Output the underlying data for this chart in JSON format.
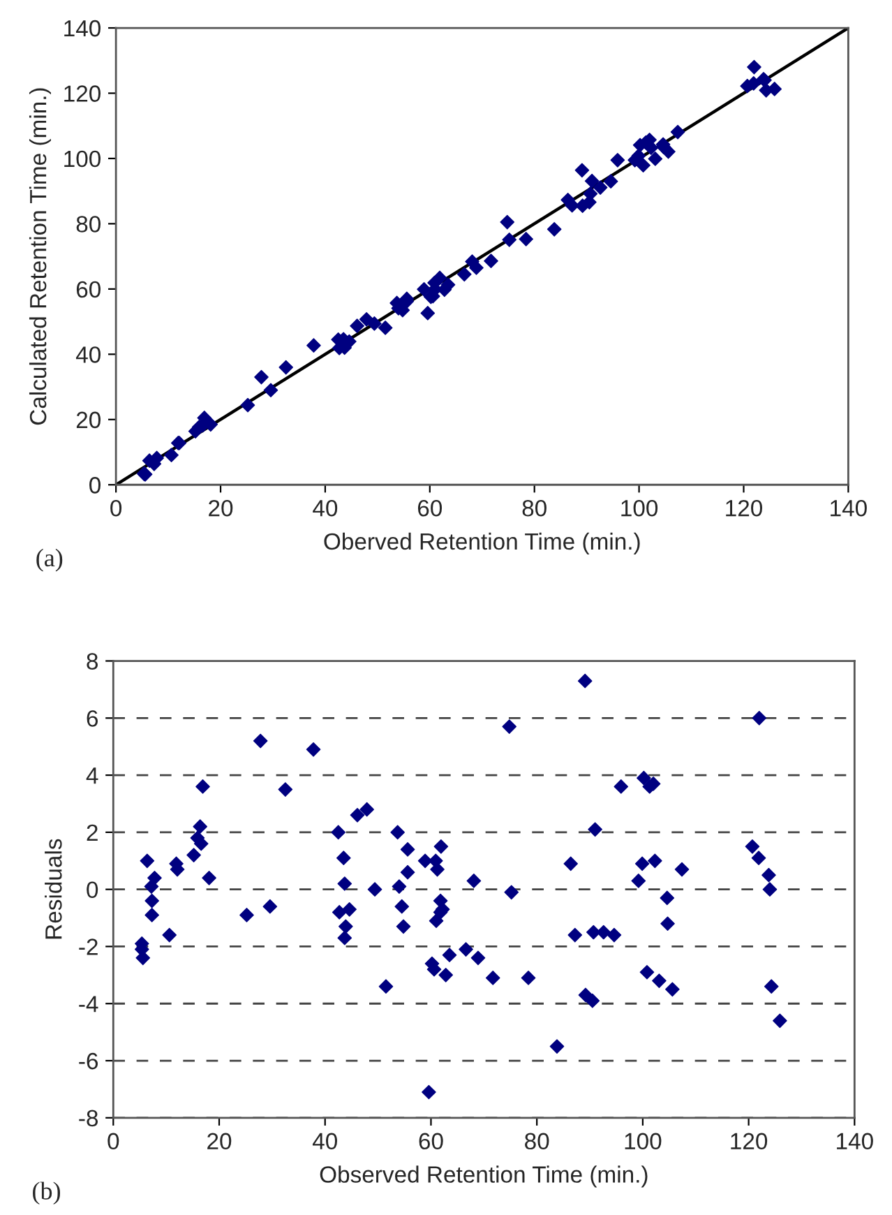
{
  "chart_data": [
    {
      "type": "scatter",
      "xlabel": "Oberved Retention Time (min.)",
      "ylabel": "Calculated Retention Time (min.)",
      "annotations": [
        "(a)"
      ],
      "xlim": [
        0,
        140
      ],
      "ylim": [
        0,
        140
      ],
      "xticks": [
        0,
        20,
        40,
        60,
        80,
        100,
        120,
        140
      ],
      "yticks": [
        0,
        20,
        40,
        60,
        80,
        100,
        120,
        140
      ],
      "grid": false,
      "series": [
        {
          "color": "#000080",
          "marker": "diamond",
          "x": [
            5.4,
            5.4,
            5.6,
            6.4,
            7.8,
            7.3,
            10.6,
            11.9,
            12.1,
            15.2,
            16.9,
            15.9,
            16.6,
            18.1,
            25.2,
            27.8,
            29.6,
            32.5,
            37.8,
            42.5,
            43.5,
            42.7,
            44.6,
            43.7,
            46.1,
            47.9,
            49.4,
            51.5,
            53.7,
            55.6,
            55.6,
            54.0,
            54.8,
            58.9,
            60.9,
            61.9,
            61.0,
            60.2,
            60.6,
            63.5,
            62.8,
            59.6,
            66.6,
            68.1,
            68.9,
            71.7,
            74.8,
            75.2,
            78.4,
            83.8,
            86.4,
            87.2,
            89.1,
            89.2,
            90.5,
            91.0,
            90.7,
            92.6,
            94.6,
            95.9,
            100.2,
            101.3,
            102.0,
            99.2,
            99.9,
            102.3,
            107.4,
            104.6,
            104.7,
            100.8,
            103.1,
            105.6,
            122.0,
            120.7,
            121.9,
            123.8,
            124.0,
            124.3,
            125.9
          ],
          "values": [
            3.5,
            3.3,
            3.2,
            7.4,
            8.2,
            6.4,
            9.1,
            12.8,
            12.8,
            16.4,
            20.5,
            17.7,
            18.2,
            18.5,
            24.4,
            33.0,
            29.0,
            36.0,
            42.7,
            44.5,
            44.6,
            41.9,
            43.9,
            42.0,
            48.7,
            50.7,
            49.4,
            48.1,
            55.7,
            57.0,
            56.2,
            54.1,
            53.5,
            59.9,
            61.9,
            63.4,
            59.9,
            57.6,
            57.8,
            61.3,
            59.8,
            52.6,
            64.5,
            68.4,
            66.5,
            68.6,
            80.5,
            75.1,
            75.3,
            78.3,
            87.3,
            85.6,
            96.4,
            85.5,
            86.6,
            93.1,
            89.2,
            91.1,
            93.0,
            99.5,
            104.1,
            104.9,
            105.7,
            99.5,
            100.8,
            103.3,
            108.1,
            104.3,
            103.5,
            97.9,
            99.9,
            102.1,
            128.0,
            122.2,
            123.0,
            124.3,
            124.0,
            120.9,
            121.3
          ]
        },
        {
          "type": "line",
          "color": "#000000",
          "x": [
            0,
            140
          ],
          "values": [
            0,
            140
          ]
        }
      ]
    },
    {
      "type": "scatter",
      "xlabel": "Observed Retention Time (min.)",
      "ylabel": "Residuals",
      "annotations": [
        "(b)"
      ],
      "xlim": [
        0,
        140
      ],
      "ylim": [
        -8,
        8
      ],
      "xticks": [
        0,
        20,
        40,
        60,
        80,
        100,
        120,
        140
      ],
      "yticks": [
        -8,
        -6,
        -4,
        -2,
        0,
        2,
        4,
        6,
        8
      ],
      "grid": "y",
      "series": [
        {
          "color": "#000080",
          "marker": "diamond",
          "x": [
            5.4,
            5.4,
            5.6,
            6.4,
            7.2,
            7.8,
            7.3,
            7.3,
            10.6,
            11.9,
            12.1,
            15.2,
            16.9,
            16.4,
            15.9,
            16.6,
            18.1,
            25.2,
            27.8,
            29.6,
            32.5,
            37.8,
            42.5,
            43.5,
            43.7,
            42.7,
            44.6,
            43.9,
            43.7,
            46.1,
            47.9,
            49.4,
            51.5,
            53.7,
            55.6,
            55.6,
            54.0,
            54.5,
            54.8,
            58.9,
            60.9,
            61.2,
            61.9,
            61.8,
            62.2,
            61.8,
            61.0,
            60.2,
            60.6,
            63.5,
            62.8,
            59.6,
            66.6,
            68.1,
            68.9,
            71.7,
            74.8,
            75.2,
            78.4,
            83.8,
            86.4,
            87.2,
            89.1,
            89.2,
            90.5,
            91.0,
            90.7,
            92.6,
            94.6,
            95.9,
            100.2,
            101.3,
            102.0,
            99.2,
            99.9,
            102.3,
            107.4,
            104.6,
            104.7,
            100.8,
            103.1,
            105.6,
            122.0,
            120.7,
            121.9,
            123.8,
            124.0,
            124.3,
            125.9
          ],
          "values": [
            -1.9,
            -2.1,
            -2.4,
            1.0,
            0.1,
            0.4,
            -0.4,
            -0.9,
            -1.6,
            0.9,
            0.7,
            1.2,
            3.6,
            2.2,
            1.8,
            1.6,
            0.4,
            -0.9,
            5.2,
            -0.6,
            3.5,
            4.9,
            2.0,
            1.1,
            0.2,
            -0.8,
            -0.7,
            -1.3,
            -1.7,
            2.6,
            2.8,
            0.0,
            -3.4,
            2.0,
            1.4,
            0.6,
            0.1,
            -0.6,
            -1.3,
            1.0,
            1.0,
            0.7,
            1.5,
            -0.4,
            -0.7,
            -0.8,
            -1.1,
            -2.6,
            -2.8,
            -2.3,
            -3.0,
            -7.1,
            -2.1,
            0.3,
            -2.4,
            -3.1,
            5.7,
            -0.1,
            -3.1,
            -5.5,
            0.9,
            -1.6,
            7.3,
            -3.7,
            -3.9,
            2.1,
            -1.5,
            -1.5,
            -1.6,
            3.6,
            3.9,
            3.6,
            3.7,
            0.3,
            0.9,
            1.0,
            0.7,
            -0.3,
            -1.2,
            -2.9,
            -3.2,
            -3.5,
            6.0,
            1.5,
            1.1,
            0.5,
            0.0,
            -3.4,
            -4.6
          ]
        }
      ]
    }
  ]
}
